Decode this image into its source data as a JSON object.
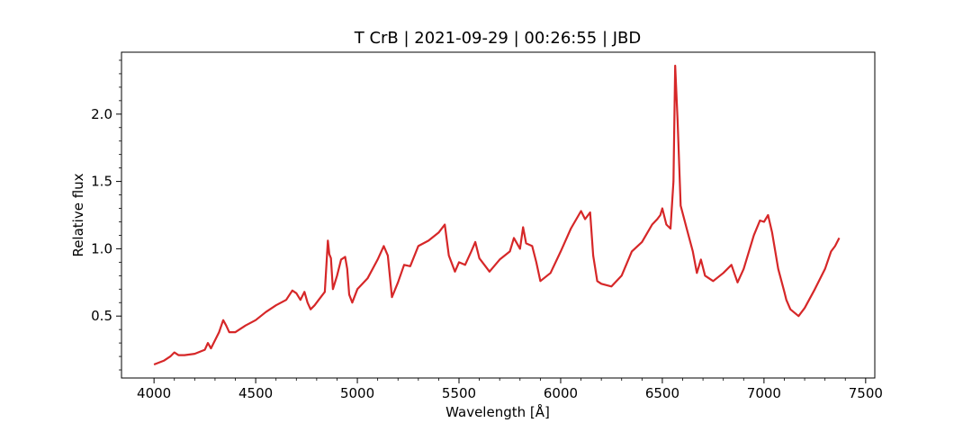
{
  "chart_data": {
    "type": "line",
    "title": "T CrB | 2021-09-29 | 00:26:55 | JBD",
    "xlabel": "Wavelength [Å]",
    "ylabel": "Relative flux",
    "xlim": [
      3840,
      7545
    ],
    "ylim": [
      0.04,
      2.46
    ],
    "xticks": [
      4000,
      4500,
      5000,
      5500,
      6000,
      6500,
      7000,
      7500
    ],
    "yticks": [
      0.5,
      1.0,
      1.5,
      2.0
    ],
    "xtick_labels": [
      "4000",
      "4500",
      "5000",
      "5500",
      "6000",
      "6500",
      "7000",
      "7500"
    ],
    "ytick_labels": [
      "0.5",
      "1.0",
      "1.5",
      "2.0"
    ],
    "grid": false,
    "line_color": "#d62728",
    "series": [
      {
        "x": [
          4000,
          4050,
          4080,
          4100,
          4120,
          4150,
          4200,
          4250,
          4265,
          4280,
          4300,
          4320,
          4340,
          4355,
          4370,
          4400,
          4450,
          4500,
          4550,
          4600,
          4650,
          4680,
          4700,
          4720,
          4740,
          4755,
          4770,
          4790,
          4810,
          4840,
          4855,
          4862,
          4870,
          4880,
          4900,
          4920,
          4940,
          4950,
          4960,
          4975,
          5000,
          5050,
          5100,
          5130,
          5150,
          5170,
          5200,
          5230,
          5260,
          5300,
          5350,
          5400,
          5430,
          5450,
          5480,
          5500,
          5530,
          5560,
          5580,
          5600,
          5650,
          5700,
          5750,
          5770,
          5800,
          5815,
          5830,
          5860,
          5880,
          5900,
          5950,
          6000,
          6050,
          6100,
          6120,
          6145,
          6160,
          6180,
          6200,
          6250,
          6300,
          6350,
          6400,
          6450,
          6475,
          6490,
          6500,
          6520,
          6540,
          6555,
          6563,
          6575,
          6590,
          6620,
          6650,
          6670,
          6690,
          6710,
          6750,
          6800,
          6840,
          6870,
          6900,
          6950,
          6980,
          7000,
          7020,
          7040,
          7070,
          7100,
          7110,
          7130,
          7170,
          7200,
          7250,
          7300,
          7330,
          7350,
          7370
        ],
        "y": [
          0.14,
          0.17,
          0.2,
          0.23,
          0.21,
          0.21,
          0.22,
          0.25,
          0.3,
          0.26,
          0.32,
          0.38,
          0.47,
          0.43,
          0.38,
          0.38,
          0.43,
          0.47,
          0.53,
          0.58,
          0.62,
          0.69,
          0.67,
          0.62,
          0.68,
          0.6,
          0.55,
          0.58,
          0.62,
          0.68,
          1.06,
          0.96,
          0.93,
          0.7,
          0.8,
          0.92,
          0.94,
          0.85,
          0.66,
          0.6,
          0.7,
          0.78,
          0.92,
          1.02,
          0.95,
          0.64,
          0.75,
          0.88,
          0.87,
          1.02,
          1.06,
          1.12,
          1.18,
          0.95,
          0.83,
          0.9,
          0.88,
          0.98,
          1.05,
          0.93,
          0.83,
          0.92,
          0.98,
          1.08,
          1.0,
          1.16,
          1.04,
          1.02,
          0.9,
          0.76,
          0.82,
          0.98,
          1.15,
          1.28,
          1.22,
          1.27,
          0.95,
          0.76,
          0.74,
          0.72,
          0.8,
          0.98,
          1.05,
          1.18,
          1.22,
          1.25,
          1.3,
          1.18,
          1.15,
          1.5,
          2.36,
          1.95,
          1.32,
          1.15,
          0.98,
          0.82,
          0.92,
          0.8,
          0.76,
          0.82,
          0.88,
          0.75,
          0.85,
          1.1,
          1.21,
          1.2,
          1.25,
          1.12,
          0.85,
          0.68,
          0.62,
          0.55,
          0.5,
          0.56,
          0.7,
          0.85,
          0.98,
          1.02,
          1.08
        ]
      }
    ]
  }
}
